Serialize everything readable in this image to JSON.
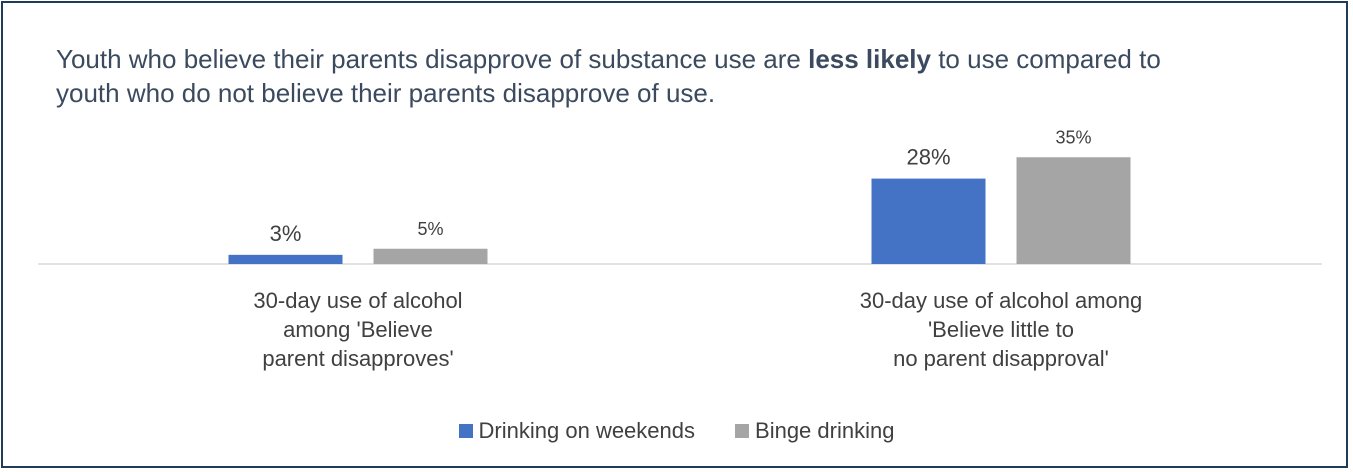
{
  "title": {
    "before": "Youth who believe their parents disapprove of substance use are ",
    "emphasis": "less likely",
    "after": " to use compared to youth who do not believe their parents disapprove of use."
  },
  "chart_data": {
    "type": "bar",
    "categories": [
      [
        "30-day use of alcohol",
        "among 'Believe",
        "parent disapproves'"
      ],
      [
        "30-day use of alcohol among",
        "'Believe little to",
        "no parent disapproval'"
      ]
    ],
    "series": [
      {
        "name": "Drinking on weekends",
        "color": "#4472c4",
        "values": [
          3,
          28
        ],
        "labels": [
          "3%",
          "28%"
        ]
      },
      {
        "name": "Binge drinking",
        "color": "#a5a5a5",
        "values": [
          5,
          35
        ],
        "labels": [
          "5%",
          "35%"
        ]
      }
    ],
    "ylim": [
      0,
      40
    ],
    "grid": false,
    "legend": "bottom"
  }
}
